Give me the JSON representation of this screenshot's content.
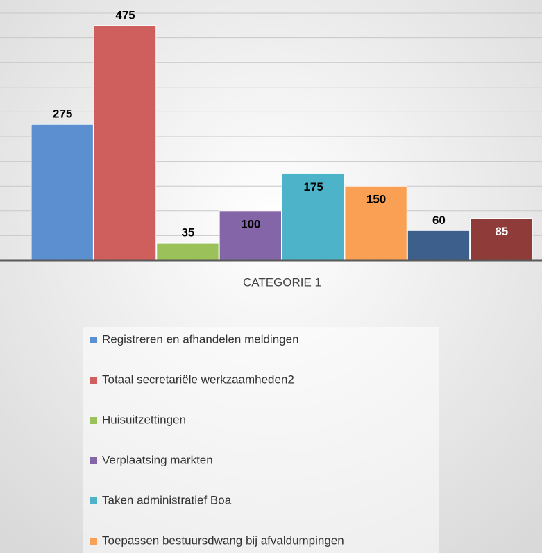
{
  "chart_data": {
    "type": "bar",
    "categories": [
      "CATEGORIE 1"
    ],
    "series": [
      {
        "name": "Registreren en afhandelen meldingen",
        "color": "#5b8fd0",
        "values": [
          275
        ]
      },
      {
        "name": "Totaal secretariële werkzaamheden2",
        "color": "#cf5f5d",
        "values": [
          475
        ]
      },
      {
        "name": "Huisuitzettingen",
        "color": "#9bc15a",
        "values": [
          35
        ]
      },
      {
        "name": "Verplaatsing markten",
        "color": "#8466a8",
        "values": [
          100
        ]
      },
      {
        "name": "Taken administratief Boa",
        "color": "#4cb3c9",
        "values": [
          175
        ]
      },
      {
        "name": "Toepassen bestuursdwang bij afvaldumpingen",
        "color": "#f9a054",
        "values": [
          150
        ]
      },
      {
        "name": null,
        "color": "#3c5f8c",
        "values": [
          60
        ]
      },
      {
        "name": null,
        "color": "#8e3b3a",
        "values": [
          85
        ]
      }
    ],
    "ylim": [
      0,
      500
    ],
    "yticks": [
      50,
      100,
      150,
      200,
      250,
      300,
      350,
      400,
      450,
      500
    ],
    "grid": true
  }
}
